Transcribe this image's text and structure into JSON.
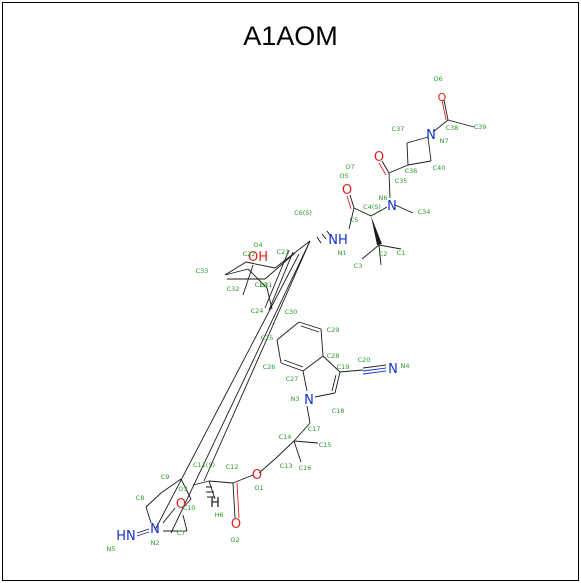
{
  "title": "A1AOM",
  "colors": {
    "bond": "#1a1a1a",
    "carbon_label": "#2a9a2a",
    "oxygen": "#e02020",
    "nitrogen": "#1030d0"
  },
  "heteroatom_symbols": {
    "o_hydroxyl": "OH",
    "n_amide": "NH",
    "n_n7": "N",
    "n_n6": "N",
    "n_nitrile": "N",
    "n_indole": "N",
    "n_imine": "HN",
    "n_n2": "N",
    "o_o6": "O",
    "o_o5": "O",
    "o_o7": "O",
    "o_o2": "O",
    "o_o1": "O",
    "o_o3": "O",
    "h_h6": "H"
  },
  "atom_labels": {
    "O6": "O6",
    "N7": "N7",
    "C38": "C38",
    "C39": "C39",
    "C37": "C37",
    "C36": "C36",
    "C40": "C40",
    "C35": "C35",
    "O7": "O7",
    "O5": "O5",
    "N6": "N6",
    "C4S": "C4(S)",
    "C34": "C34",
    "C5": "C5",
    "C6S": "C6(S)",
    "C2": "C2",
    "C1": "C1",
    "C3": "C3",
    "N1": "N1",
    "O4": "O4",
    "C22": "C22",
    "C21": "C21",
    "C33": "C33",
    "C23": "C23",
    "C31": "C31",
    "C32": "C32",
    "C24": "C24",
    "C30": "C30",
    "C29": "C29",
    "C25": "C25",
    "C28": "C28",
    "C20": "C20",
    "N4": "N4",
    "C26": "C26",
    "C27": "C27",
    "C19": "C19",
    "N3": "N3",
    "C18": "C18",
    "C17": "C17",
    "C14": "C14",
    "C15": "C15",
    "C13": "C13",
    "C16": "C16",
    "C11S": "C11(S)",
    "C12": "C12",
    "C9": "C9",
    "O1": "O1",
    "C8": "C8",
    "O3": "O3",
    "C10": "C10",
    "H6": "H6",
    "C7": "C7",
    "N5": "N5",
    "N2": "N2",
    "O2": "O2"
  }
}
